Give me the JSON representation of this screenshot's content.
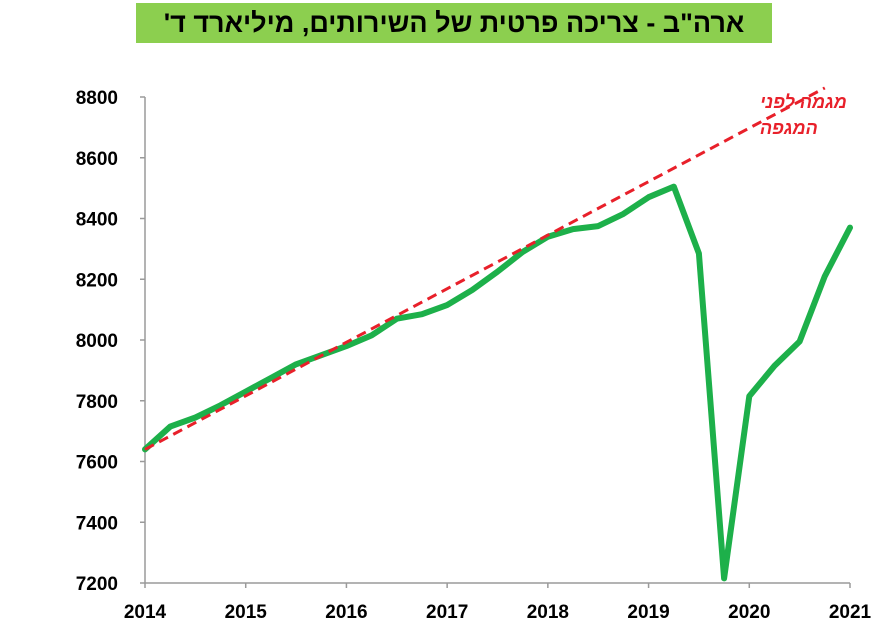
{
  "chart_data": {
    "type": "line",
    "title": "ארה\"ב - צריכה פרטית של השירותים, מיליארד ד'",
    "xlabel": "",
    "ylabel": "",
    "x_ticks": [
      "2014",
      "2015",
      "2016",
      "2017",
      "2018",
      "2019",
      "2020",
      "2021"
    ],
    "y_ticks": [
      "7200",
      "7400",
      "7600",
      "7800",
      "8000",
      "8200",
      "8400",
      "8600",
      "8800"
    ],
    "xlim": [
      2014,
      2021
    ],
    "ylim": [
      7200,
      8800
    ],
    "grid": false,
    "annotation": {
      "line1": "מגמה לפני",
      "line2": "המגפה"
    },
    "series": [
      {
        "style": "solid",
        "color": "#1db04a",
        "x": [
          2014.0,
          2014.25,
          2014.5,
          2014.75,
          2015.0,
          2015.25,
          2015.5,
          2015.75,
          2016.0,
          2016.25,
          2016.5,
          2016.75,
          2017.0,
          2017.25,
          2017.5,
          2017.75,
          2018.0,
          2018.25,
          2018.5,
          2018.75,
          2019.0,
          2019.25,
          2019.5,
          2019.75,
          2020.0,
          2020.25,
          2020.5,
          2020.75,
          2021.0
        ],
        "y": [
          7640,
          7715,
          7745,
          7785,
          7830,
          7875,
          7920,
          7950,
          7980,
          8015,
          8070,
          8085,
          8115,
          8165,
          8225,
          8290,
          8340,
          8365,
          8375,
          8415,
          8470,
          8505,
          8285,
          7215,
          7815,
          7915,
          7995,
          8210,
          8370
        ]
      },
      {
        "style": "dashed",
        "color": "#e8202a",
        "x": [
          2014.0,
          2020.75
        ],
        "y": [
          7640,
          8830
        ]
      }
    ]
  }
}
